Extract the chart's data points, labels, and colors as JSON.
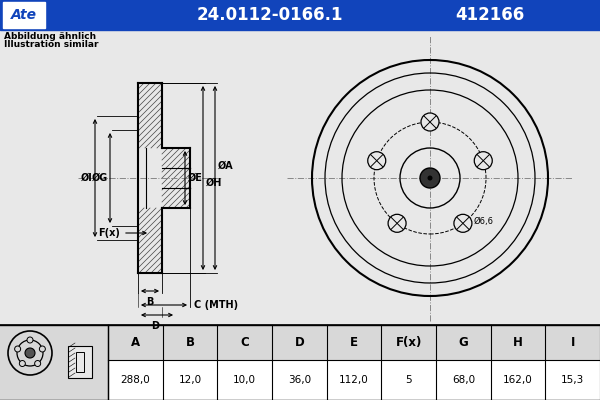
{
  "bg_color": "#d8d8d8",
  "header_bg": "#1144bb",
  "header_text_color": "#ffffff",
  "part_number": "24.0112-0166.1",
  "ref_number": "412166",
  "brand": "Ate",
  "note_line1": "Abbildung ähnlich",
  "note_line2": "Illustration similar",
  "table_headers": [
    "A",
    "B",
    "C",
    "D",
    "E",
    "F(x)",
    "G",
    "H",
    "I"
  ],
  "table_values": [
    "288,0",
    "12,0",
    "10,0",
    "36,0",
    "112,0",
    "5",
    "68,0",
    "162,0",
    "15,3"
  ],
  "dim_label_phi6_6": "Ø6,6",
  "label_c_mth": "C (MTH)",
  "label_phi_i": "ØI",
  "label_phi_g": "ØG",
  "label_phi_e": "ØE",
  "label_phi_h": "ØH",
  "label_phi_a": "ØA",
  "label_b": "B",
  "label_d": "D",
  "label_fx": "F(x)",
  "centerline_color": "#888888",
  "draw_area_bg": "#e8e8e8",
  "white": "#ffffff"
}
